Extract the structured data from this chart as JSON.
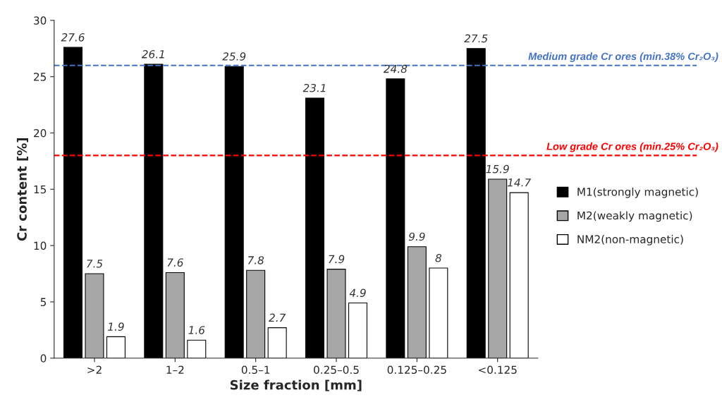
{
  "chart_data": {
    "type": "bar",
    "xlabel": "Size fraction [mm]",
    "ylabel": "Cr content [%]",
    "categories": [
      ">2",
      "1–2",
      "0.5–1",
      "0.25–0.5",
      "0.125–0.25",
      "<0.125"
    ],
    "series": [
      {
        "name": "M1(strongly magnetic)",
        "color": "#000000",
        "values": [
          27.6,
          26.1,
          25.9,
          23.1,
          24.8,
          27.5
        ]
      },
      {
        "name": "M2(weakly magnetic)",
        "color": "#a6a6a6",
        "values": [
          7.5,
          7.6,
          7.8,
          7.9,
          9.9,
          15.9
        ]
      },
      {
        "name": "NM2(non-magnetic)",
        "color": "#ffffff",
        "values": [
          1.9,
          1.6,
          2.7,
          4.9,
          8,
          14.7
        ]
      }
    ],
    "ylim": [
      0,
      30
    ],
    "yticks": [
      0,
      5,
      10,
      15,
      20,
      25,
      30
    ],
    "ref_lines": [
      {
        "axis": "y",
        "value": 26,
        "label": "Medium grade Cr ores (min.38% Cr₂O₃)",
        "color": "#4472c4",
        "line_style": "dashed"
      },
      {
        "axis": "y",
        "value": 18,
        "label": "Low grade Cr ores (min.25% Cr₂O₃)",
        "color": "#ff0000",
        "line_style": "dashed"
      }
    ],
    "data_labels": true,
    "grid": false,
    "legend": "right"
  }
}
